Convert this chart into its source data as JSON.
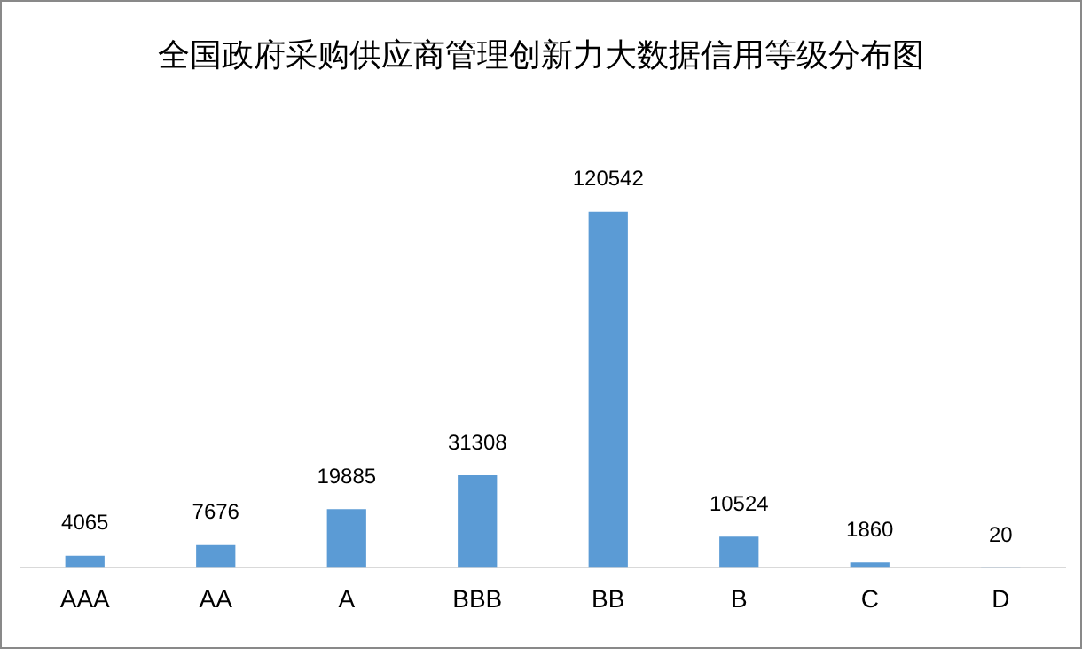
{
  "chart_data": {
    "type": "bar",
    "title": "全国政府采购供应商管理创新力大数据信用等级分布图",
    "categories": [
      "AAA",
      "AA",
      "A",
      "BBB",
      "BB",
      "B",
      "C",
      "D"
    ],
    "values": [
      4065,
      7676,
      19885,
      31308,
      120542,
      10524,
      1860,
      20
    ],
    "color": "#5b9bd5",
    "data_labels": true,
    "grid": false,
    "legend": false
  }
}
